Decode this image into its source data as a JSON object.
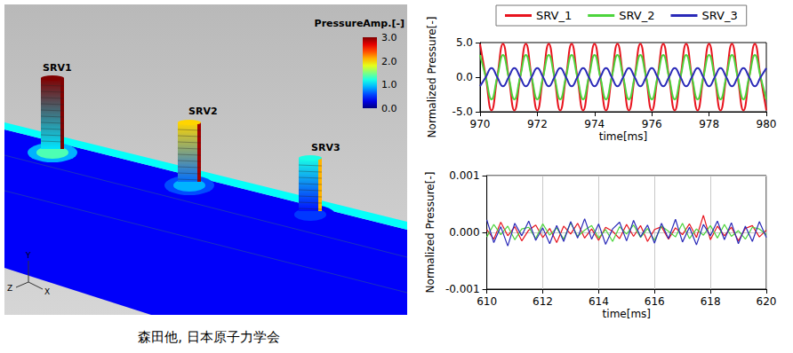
{
  "figure": {
    "contour_plot": {
      "colorbar_title": "PressureAmp.[-]",
      "colorbar_range": [
        0,
        3
      ],
      "colorbar_ticks": [
        {
          "value": 3,
          "label": "3.0"
        },
        {
          "value": 2,
          "label": "2.0"
        },
        {
          "value": 1,
          "label": "1.0"
        },
        {
          "value": 0,
          "label": "0.0"
        }
      ],
      "branches": [
        {
          "label": "SRV1",
          "amplitude": 3.0
        },
        {
          "label": "SRV2",
          "amplitude": 2.0
        },
        {
          "label": "SRV3",
          "amplitude": 1.2
        }
      ],
      "axis_triad": {
        "y": "Y",
        "z": "Z",
        "x": "X"
      }
    },
    "caption": "森田他, 日本原子力学会"
  },
  "chart_data": [
    {
      "type": "line",
      "xlabel": "time[ms]",
      "ylabel": "Normalized Pressure[-]",
      "x": [
        970,
        970.2,
        970.4,
        970.6,
        970.8,
        971,
        971.2,
        971.4,
        971.6,
        971.8,
        972,
        972.2,
        972.4,
        972.6,
        972.8,
        973,
        973.2,
        973.4,
        973.6,
        973.8,
        974,
        974.2,
        974.4,
        974.6,
        974.8,
        975,
        975.2,
        975.4,
        975.6,
        975.8,
        976,
        976.2,
        976.4,
        976.6,
        976.8,
        977,
        977.2,
        977.4,
        977.6,
        977.8,
        978,
        978.2,
        978.4,
        978.6,
        978.8,
        979,
        979.2,
        979.4,
        979.6,
        979.8,
        980
      ],
      "series": [
        {
          "name": "SRV_1",
          "color": "#e8141e",
          "values": [
            4.8,
            0,
            -4.8,
            0,
            4.8,
            0,
            -4.8,
            0,
            4.8,
            0,
            -4.8,
            0,
            4.8,
            0,
            -4.8,
            0,
            4.8,
            0,
            -4.8,
            0,
            4.8,
            0,
            -4.8,
            0,
            4.8,
            0,
            -4.8,
            0,
            4.8,
            0,
            -4.8,
            0,
            4.8,
            0,
            -4.8,
            0,
            4.8,
            0,
            -4.8,
            0,
            4.8,
            0,
            -4.8,
            0,
            4.8,
            0,
            -4.8,
            0,
            4.8,
            0,
            -4.8
          ]
        },
        {
          "name": "SRV_2",
          "color": "#4cd43c",
          "values": [
            3.2,
            0,
            -3.2,
            0,
            3.2,
            0,
            -3.2,
            0,
            3.2,
            0,
            -3.2,
            0,
            3.2,
            0,
            -3.2,
            0,
            3.2,
            0,
            -3.2,
            0,
            3.2,
            0,
            -3.2,
            0,
            3.2,
            0,
            -3.2,
            0,
            3.2,
            0,
            -3.2,
            0,
            3.2,
            0,
            -3.2,
            0,
            3.2,
            0,
            -3.2,
            0,
            3.2,
            0,
            -3.2,
            0,
            3.2,
            0,
            -3.2,
            0,
            3.2,
            0,
            -3.2
          ]
        },
        {
          "name": "SRV_3",
          "color": "#2a2ab8",
          "values": [
            -1.3,
            0,
            1.3,
            0,
            -1.3,
            0,
            1.3,
            0,
            -1.3,
            0,
            1.3,
            0,
            -1.3,
            0,
            1.3,
            0,
            -1.3,
            0,
            1.3,
            0,
            -1.3,
            0,
            1.3,
            0,
            -1.3,
            0,
            1.3,
            0,
            -1.3,
            0,
            1.3,
            0,
            -1.3,
            0,
            1.3,
            0,
            -1.3,
            0,
            1.3,
            0,
            -1.3,
            0,
            1.3,
            0,
            -1.3,
            0,
            1.3,
            0,
            -1.3,
            0,
            1.3
          ]
        }
      ],
      "xlim": [
        970,
        980
      ],
      "xticks": [
        970,
        972,
        974,
        976,
        978,
        980
      ],
      "ylim": [
        -5,
        5
      ],
      "yticks": [
        {
          "value": -5,
          "label": "-5.0"
        },
        {
          "value": 0,
          "label": "0.0"
        },
        {
          "value": 5,
          "label": "5.0"
        }
      ],
      "grid": false,
      "legend": "top"
    },
    {
      "type": "line",
      "xlabel": "time[ms]",
      "ylabel": "Normalized Pressure[-]",
      "x": [
        610,
        610.25,
        610.5,
        610.75,
        611,
        611.25,
        611.5,
        611.75,
        612,
        612.25,
        612.5,
        612.75,
        613,
        613.25,
        613.5,
        613.75,
        614,
        614.25,
        614.5,
        614.75,
        615,
        615.25,
        615.5,
        615.75,
        616,
        616.25,
        616.5,
        616.75,
        617,
        617.25,
        617.5,
        617.75,
        618,
        618.25,
        618.5,
        618.75,
        619,
        619.25,
        619.5,
        619.75,
        620
      ],
      "series": [
        {
          "color": "#e8141e",
          "values": [
            5e-05,
            -0.00012,
            0.00018,
            -6e-05,
            0.0001,
            -0.00015,
            4e-05,
            0.00013,
            -9e-05,
            7e-05,
            -0.00018,
            0.00011,
            -3e-05,
            0.00016,
            -0.0001,
            6e-05,
            -0.00014,
            9e-05,
            2e-05,
            -0.00011,
            0.00014,
            -7e-05,
            0.00012,
            -0.00016,
            5e-05,
            0.0001,
            -0.00012,
            8e-05,
            -4e-05,
            0.00015,
            -9e-05,
            0.0003,
            -0.00013,
            0.00011,
            -6e-05,
            9e-05,
            -0.00015,
            7e-05,
            0.00012,
            -8e-05,
            4e-05
          ]
        },
        {
          "color": "#4cd43c",
          "values": [
            -8e-05,
            0.00014,
            -4e-05,
            0.00011,
            -0.00013,
            6e-05,
            9e-05,
            -0.00011,
            0.00015,
            -5e-05,
            8e-05,
            -0.00012,
            0.00017,
            -7e-05,
            4e-05,
            0.00012,
            -0.0001,
            5e-05,
            -0.00016,
            0.0001,
            -3e-05,
            0.00013,
            -9e-05,
            7e-05,
            -0.00014,
            0.00011,
            2e-05,
            -8e-05,
            0.00016,
            -0.00011,
            6e-05,
            -5e-05,
            0.00012,
            -0.0001,
            0.00014,
            -7e-05,
            3e-05,
            -0.00012,
            9e-05,
            6e-05,
            -4e-05
          ]
        },
        {
          "color": "#2a2ab8",
          "values": [
            0.00022,
            -0.00018,
            0.0001,
            -0.00024,
            0.00016,
            -6e-05,
            0.0002,
            -0.00014,
            8e-05,
            -0.0002,
            0.00012,
            -0.00016,
            0.00019,
            -0.0001,
            0.00024,
            -0.00012,
            0.00015,
            -0.00021,
            6e-05,
            0.00018,
            -0.00015,
            0.00021,
            -8e-05,
            0.00013,
            -0.00019,
            0.00016,
            -0.00011,
            0.00023,
            -0.00017,
            9e-05,
            -0.00022,
            0.00014,
            -6e-05,
            0.0002,
            -0.00013,
            0.00017,
            -0.0002,
            0.00011,
            -0.00016,
            0.00019,
            -9e-05
          ]
        }
      ],
      "xlim": [
        610,
        620
      ],
      "xticks": [
        610,
        612,
        614,
        616,
        618,
        620
      ],
      "ylim": [
        -0.001,
        0.001
      ],
      "yticks": [
        -0.001,
        {
          "value": 0,
          "label": "0.000"
        },
        0.001
      ],
      "grid": true
    }
  ]
}
